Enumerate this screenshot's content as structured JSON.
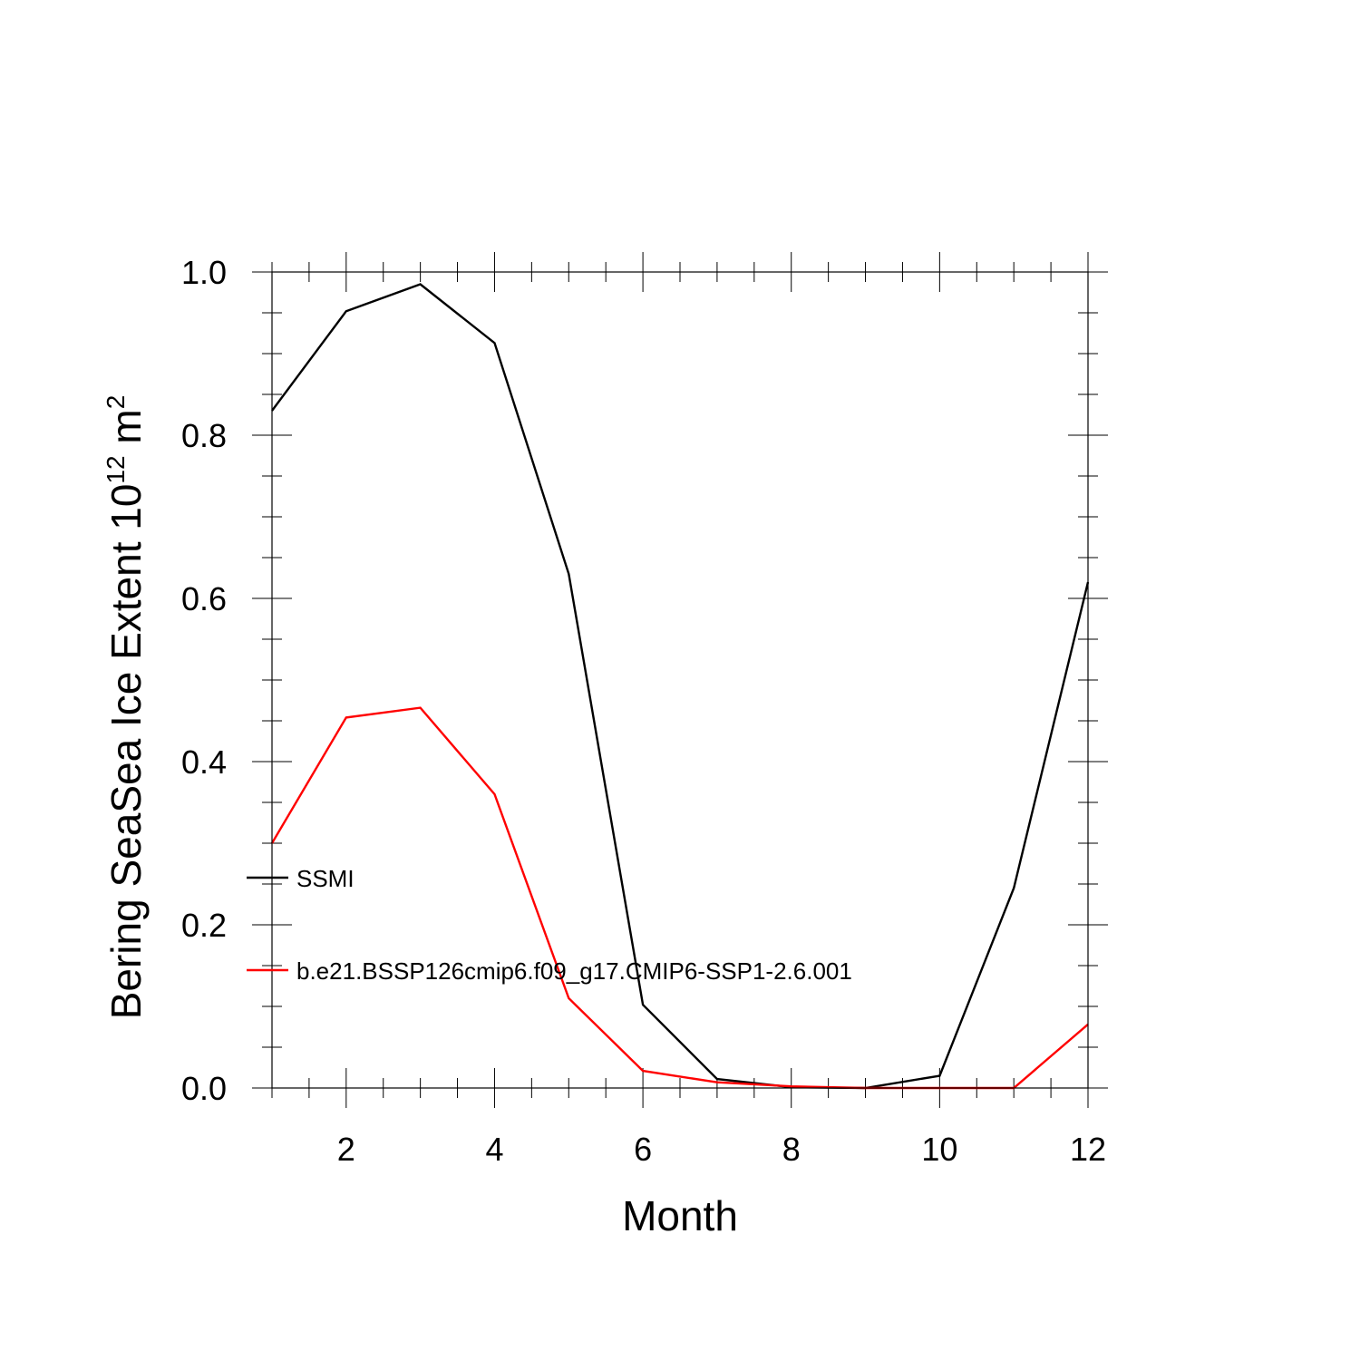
{
  "chart_data": {
    "type": "line",
    "xlabel": "Month",
    "ylabel": {
      "main": "Bering SeaSea Ice Extent 10",
      "exponent": "12",
      "unit": " m",
      "unit_exponent": "2"
    },
    "xlim": [
      1,
      12
    ],
    "ylim": [
      0,
      1.0
    ],
    "x_ticks": [
      2,
      4,
      6,
      8,
      10,
      12
    ],
    "x_tick_labels": [
      "2",
      "4",
      "6",
      "8",
      "10",
      "12"
    ],
    "y_ticks": [
      0,
      0.2,
      0.4,
      0.6,
      0.8,
      1.0
    ],
    "y_tick_labels": [
      "0.0",
      "0.2",
      "0.4",
      "0.6",
      "0.8",
      "1.0"
    ],
    "grid": false,
    "legend_placement": "left, inside",
    "x": [
      1,
      2,
      3,
      4,
      5,
      6,
      7,
      8,
      9,
      10,
      11,
      12
    ],
    "series": [
      {
        "name": "SSMI",
        "color": "#000000",
        "values": [
          0.83,
          0.952,
          0.985,
          0.913,
          0.63,
          0.102,
          0.011,
          0.001,
          0.0,
          0.015,
          0.245,
          0.62
        ]
      },
      {
        "name": "b.e21.BSSP126cmip6.f09_g17.CMIP6-SSP1-2.6.001",
        "color": "#ff0000",
        "values": [
          0.3,
          0.454,
          0.466,
          0.36,
          0.11,
          0.021,
          0.007,
          0.002,
          0.0,
          0.0,
          0.0,
          0.078
        ]
      }
    ]
  }
}
